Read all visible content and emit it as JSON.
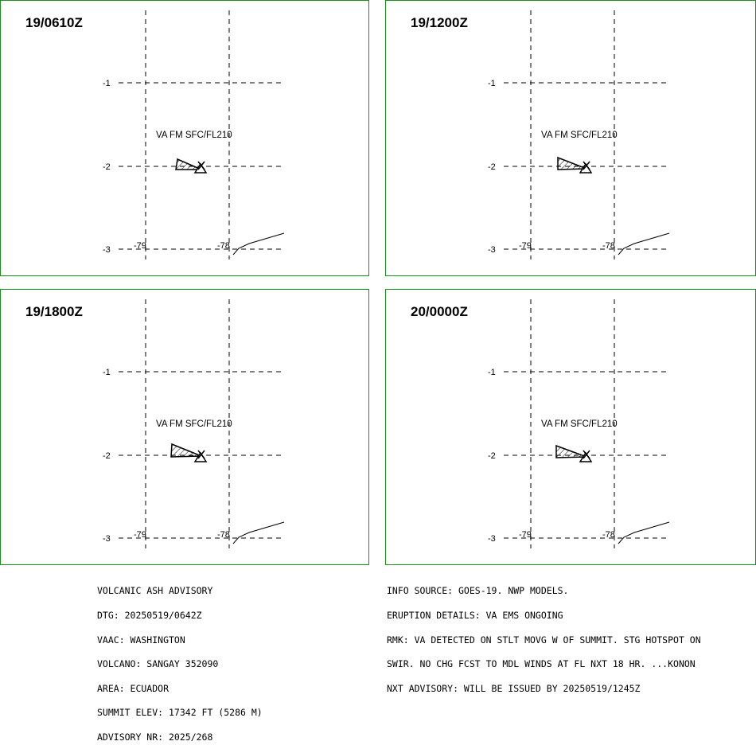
{
  "panels": [
    {
      "time": "19/0610Z",
      "va_label": "VA FM SFC/FL210"
    },
    {
      "time": "19/1200Z",
      "va_label": "VA FM SFC/FL210"
    },
    {
      "time": "19/1800Z",
      "va_label": "VA FM SFC/FL210"
    },
    {
      "time": "20/0000Z",
      "va_label": "VA FM SFC/FL210"
    }
  ],
  "grid_labels": {
    "lat": [
      "-1",
      "-2",
      "-3"
    ],
    "lon": [
      "-79",
      "-78"
    ]
  },
  "colors": {
    "frame": "#1a8f1a",
    "lines": "#000000",
    "background": "#ffffff"
  },
  "icons": {
    "volcano": "volcano-triangle-icon",
    "ash_area": "hatched-ash-polygon"
  },
  "advisory_left": [
    "VOLCANIC ASH ADVISORY",
    "DTG: 20250519/0642Z",
    "VAAC: WASHINGTON",
    "VOLCANO: SANGAY 352090",
    "AREA: ECUADOR",
    "SUMMIT ELEV: 17342 FT (5286 M)",
    "ADVISORY NR: 2025/268"
  ],
  "advisory_right": [
    "INFO SOURCE: GOES-19. NWP MODELS.",
    "ERUPTION DETAILS: VA EMS ONGOING",
    "RMK: VA DETECTED ON STLT MOVG W OF SUMMIT. STG HOTSPOT ON",
    "SWIR. NO CHG FCST TO MDL WINDS AT FL NXT 18 HR. ...KONON",
    "NXT ADVISORY: WILL BE ISSUED BY 20250519/1245Z"
  ]
}
